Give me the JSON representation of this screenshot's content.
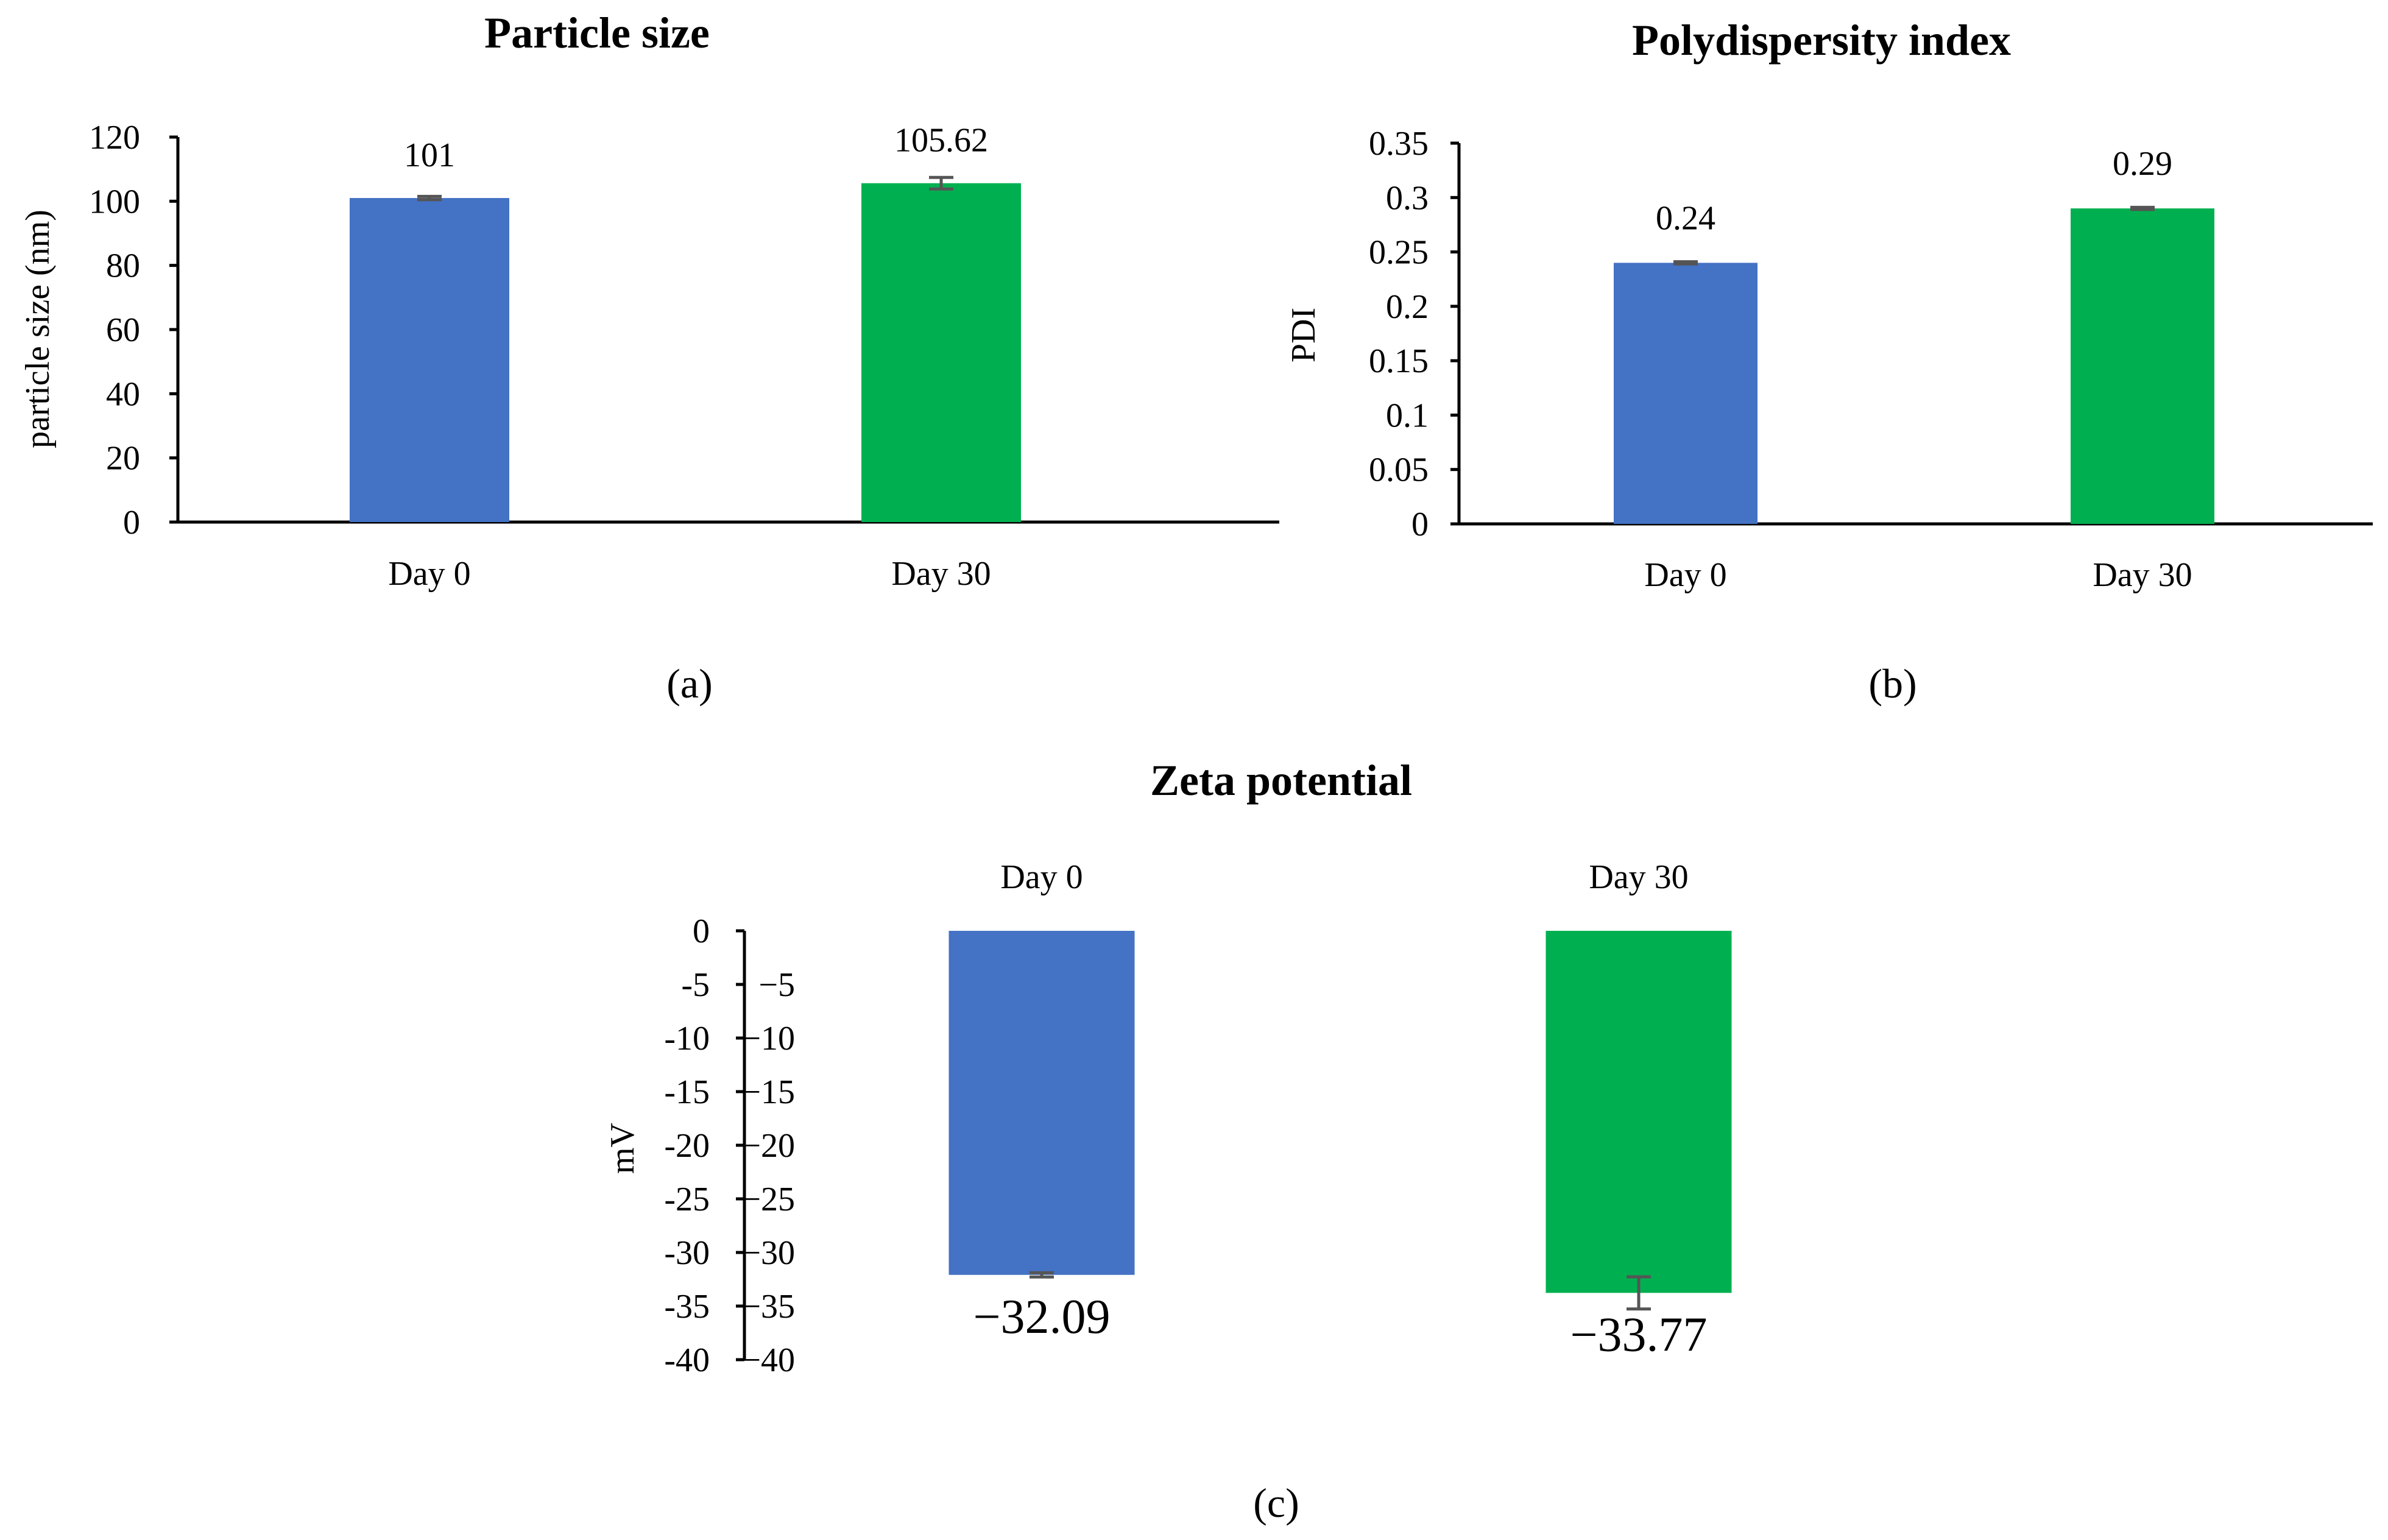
{
  "chart_data": [
    {
      "type": "bar",
      "title": "Particle size",
      "ylabel": "particle size (nm)",
      "xlabel": "",
      "categories": [
        "Day 0",
        "Day 30"
      ],
      "values": [
        101,
        105.62
      ],
      "error": [
        0.5,
        1.8
      ],
      "value_labels": [
        "101",
        "105.62"
      ],
      "ylim": [
        0,
        120
      ],
      "yticks": [
        0,
        20,
        40,
        60,
        80,
        100,
        120
      ],
      "ytick_labels": [
        "0",
        "20",
        "40",
        "60",
        "80",
        "100",
        "120"
      ],
      "colors": [
        "#4472C4",
        "#00B050"
      ],
      "panel_label": "(a)"
    },
    {
      "type": "bar",
      "title": "Polydispersity index",
      "ylabel": "PDI",
      "xlabel": "",
      "categories": [
        "Day 0",
        "Day 30"
      ],
      "values": [
        0.24,
        0.29
      ],
      "error": [
        0.001,
        0.001
      ],
      "value_labels": [
        "0.24",
        "0.29"
      ],
      "ylim": [
        0,
        0.35
      ],
      "yticks": [
        0,
        0.05,
        0.1,
        0.15,
        0.2,
        0.25,
        0.3,
        0.35
      ],
      "ytick_labels": [
        "0",
        "0.05",
        "0.1",
        "0.15",
        "0.2",
        "0.25",
        "0.3",
        "0.35"
      ],
      "colors": [
        "#4472C4",
        "#00B050"
      ],
      "panel_label": "(b)"
    },
    {
      "type": "bar",
      "title": "Zeta potential",
      "ylabel": "mV",
      "xlabel": "",
      "categories": [
        "Day 0",
        "Day 30"
      ],
      "values": [
        -32.09,
        -33.77
      ],
      "error": [
        0.2,
        1.5
      ],
      "value_labels": [
        "−32.09",
        "−33.77"
      ],
      "ylim": [
        -40,
        0
      ],
      "yticks": [
        0,
        -5,
        -10,
        -15,
        -20,
        -25,
        -30,
        -35,
        -40
      ],
      "ytick_labels": [
        "0",
        "-5",
        "-10",
        "-15",
        "-20",
        "-25",
        "-30",
        "-35",
        "-40"
      ],
      "ytick_labels_inner": [
        "",
        "−5",
        "−10",
        "−15",
        "−20",
        "−25",
        "−30",
        "−35",
        "−40"
      ],
      "colors": [
        "#4472C4",
        "#00B050"
      ],
      "panel_label": "(c)"
    }
  ]
}
